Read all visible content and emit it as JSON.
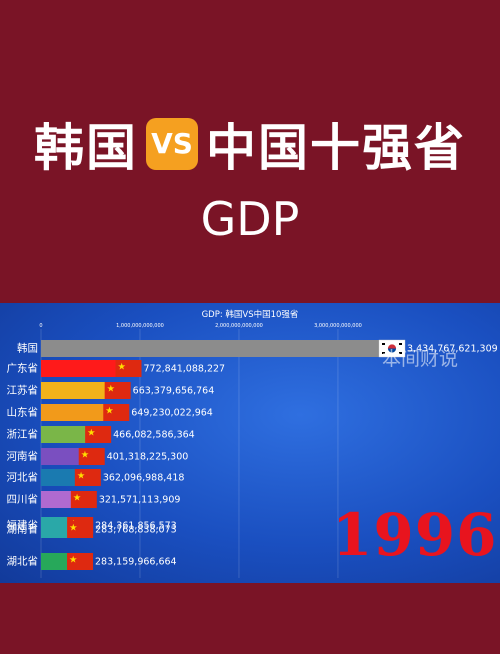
{
  "headline": {
    "left": "韩国",
    "vs": "VS",
    "right": "中国十强省",
    "sub": "GDP"
  },
  "watermark": "本间财说",
  "year": "1996",
  "colors": {
    "background": "#7a1426",
    "panel": "#1a4fc0",
    "year": "#e8141e"
  },
  "chart_data": {
    "type": "bar",
    "orientation": "horizontal",
    "title": "GDP: 韩国VS中国10强省",
    "x_ticks": [
      "0",
      "1,000,000,000,000",
      "2,000,000,000,000",
      "3,000,000,000,000"
    ],
    "x_tick_values": [
      0,
      1000000000000,
      2000000000000,
      3000000000000
    ],
    "xlim": [
      0,
      3434767621309
    ],
    "grid": true,
    "bars": [
      {
        "category": "韩国",
        "value": 3434767621309,
        "value_label": "3,434,767,621,309",
        "color": "#8c8c8c",
        "flag": "kr"
      },
      {
        "category": "广东省",
        "value": 772841088227,
        "value_label": "772,841,088,227",
        "color": "#ff1a1a",
        "flag": "cn"
      },
      {
        "category": "江苏省",
        "value": 663379656764,
        "value_label": "663,379,656,764",
        "color": "#f2b21a",
        "flag": "cn"
      },
      {
        "category": "山东省",
        "value": 649230022964,
        "value_label": "649,230,022,964",
        "color": "#f29a1a",
        "flag": "cn"
      },
      {
        "category": "浙江省",
        "value": 466082586364,
        "value_label": "466,082,586,364",
        "color": "#7ab648",
        "flag": "cn"
      },
      {
        "category": "河南省",
        "value": 401318225300,
        "value_label": "401,318,225,300",
        "color": "#7a4fc0",
        "flag": "cn"
      },
      {
        "category": "河北省",
        "value": 362096988418,
        "value_label": "362,096,988,418",
        "color": "#1a7ab0",
        "flag": "cn"
      },
      {
        "category": "四川省",
        "value": 321571113909,
        "value_label": "321,571,113,909",
        "color": "#b06ad0",
        "flag": "cn"
      },
      {
        "category": "福建省",
        "value": 284361856573,
        "value_label": "284,361,856,573",
        "color": "#2aa8a8",
        "flag": "cn"
      },
      {
        "category": "湖南省",
        "value": 283768838073,
        "value_label": "283,768,838,073",
        "color": "#2aa8a8",
        "flag": "cn"
      },
      {
        "category": "湖北省",
        "value": 283159966664,
        "value_label": "283,159,966,664",
        "color": "#27a85a",
        "flag": "cn"
      }
    ]
  }
}
